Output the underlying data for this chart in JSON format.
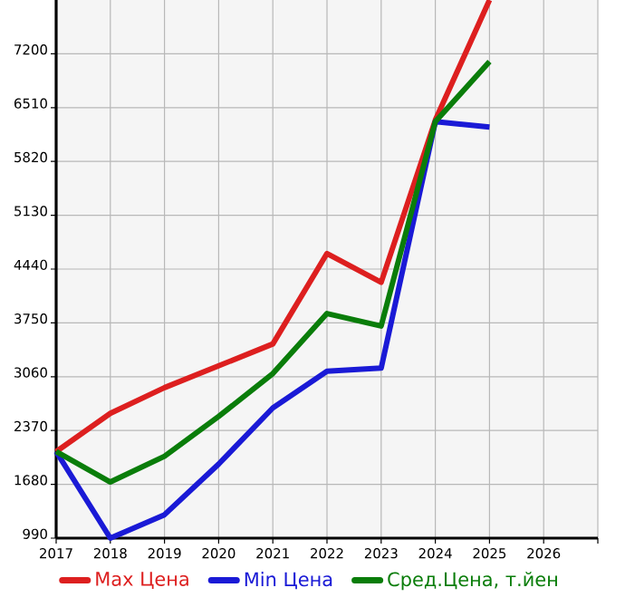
{
  "chart_data": {
    "type": "line",
    "x": [
      2017,
      2018,
      2019,
      2020,
      2021,
      2022,
      2023,
      2024,
      2025
    ],
    "series": [
      {
        "name": "Max Цена",
        "color": "#dd1f1f",
        "values": [
          2100,
          2590,
          2920,
          3200,
          3480,
          4640,
          4270,
          6350,
          7890
        ]
      },
      {
        "name": "Min Цена",
        "color": "#1a1ad6",
        "values": [
          2100,
          990,
          1290,
          1940,
          2660,
          3130,
          3170,
          6330,
          6260
        ]
      },
      {
        "name": "Сред.Цена, т.йен",
        "color": "#0a7d0a",
        "values": [
          2100,
          1710,
          2040,
          2550,
          3100,
          3870,
          3710,
          6330,
          7100
        ]
      }
    ],
    "xlim": [
      2017,
      2027
    ],
    "ylim": [
      990,
      7890
    ],
    "xticks": [
      2017,
      2018,
      2019,
      2020,
      2021,
      2022,
      2023,
      2024,
      2025,
      2026,
      {
        "value": 2027,
        "label": null
      }
    ],
    "yticks": [
      990,
      1680,
      2370,
      3060,
      3750,
      4440,
      5130,
      5820,
      6510,
      7200
    ],
    "grid": true,
    "legend": "bottom",
    "marker": "none",
    "line_style": "solid"
  }
}
